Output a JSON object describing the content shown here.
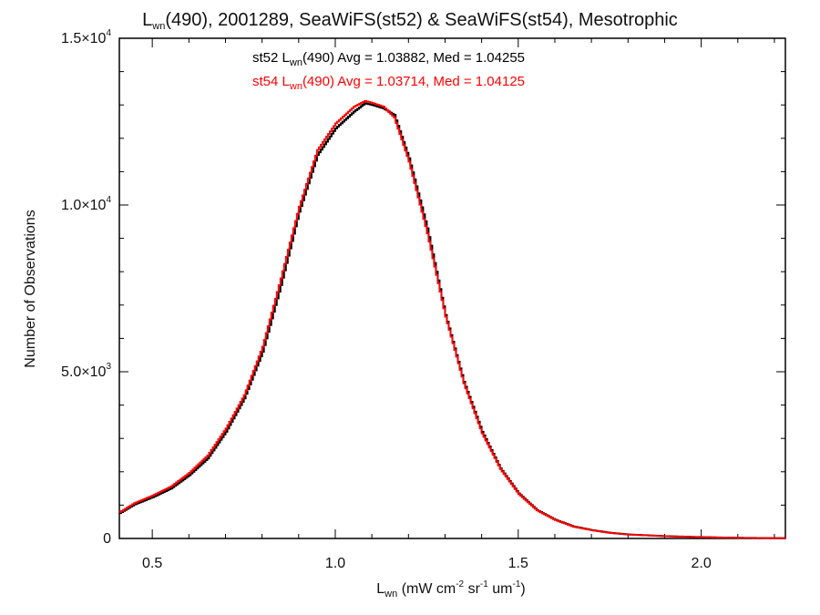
{
  "chart_data": {
    "type": "line",
    "title": {
      "prefix": "L",
      "subscript": "wn",
      "suffix": "(490), 2001289, SeaWiFS(st52) & SeaWiFS(st54), Mesotrophic"
    },
    "xlabel": {
      "prefix": "L",
      "subscript": "wn",
      "units": [
        {
          "text": "(mW cm",
          "sup": "-2"
        },
        {
          "text": "sr",
          "sup": "-1"
        },
        {
          "text": "um",
          "sup": "-1"
        },
        {
          "text": ")",
          "sup": ""
        }
      ]
    },
    "ylabel": "Number of Observations",
    "xlim": [
      0.41,
      2.23
    ],
    "ylim": [
      0,
      15000
    ],
    "x_ticks": [
      {
        "value": 0.5,
        "label": "0.5"
      },
      {
        "value": 1.0,
        "label": "1.0"
      },
      {
        "value": 1.5,
        "label": "1.5"
      },
      {
        "value": 2.0,
        "label": "2.0"
      }
    ],
    "y_ticks": [
      {
        "value": 0,
        "mantissa": "0",
        "exponent": ""
      },
      {
        "value": 5000,
        "mantissa": "5.0×10",
        "exponent": "3"
      },
      {
        "value": 10000,
        "mantissa": "1.0×10",
        "exponent": "4"
      },
      {
        "value": 15000,
        "mantissa": "1.5×10",
        "exponent": "4"
      }
    ],
    "legend": {
      "placement": "top-center",
      "entries": [
        {
          "series_index": 0,
          "prefix": "st52 L",
          "subscript": "wn",
          "suffix": "(490) Avg = 1.03882, Med = 1.04255"
        },
        {
          "series_index": 1,
          "prefix": "st54 L",
          "subscript": "wn",
          "suffix": "(490) Avg = 1.03714, Med = 1.04125"
        }
      ]
    },
    "series": [
      {
        "name": "st52",
        "color": "#000000",
        "points": [
          [
            0.41,
            760
          ],
          [
            0.45,
            1020
          ],
          [
            0.5,
            1240
          ],
          [
            0.55,
            1500
          ],
          [
            0.6,
            1900
          ],
          [
            0.65,
            2400
          ],
          [
            0.7,
            3200
          ],
          [
            0.75,
            4200
          ],
          [
            0.8,
            5600
          ],
          [
            0.85,
            7600
          ],
          [
            0.9,
            9800
          ],
          [
            0.95,
            11500
          ],
          [
            1.0,
            12300
          ],
          [
            1.05,
            12800
          ],
          [
            1.08,
            13050
          ],
          [
            1.1,
            13000
          ],
          [
            1.13,
            12900
          ],
          [
            1.16,
            12700
          ],
          [
            1.2,
            11400
          ],
          [
            1.25,
            9300
          ],
          [
            1.3,
            6700
          ],
          [
            1.35,
            4700
          ],
          [
            1.4,
            3200
          ],
          [
            1.45,
            2100
          ],
          [
            1.5,
            1350
          ],
          [
            1.55,
            850
          ],
          [
            1.6,
            560
          ],
          [
            1.65,
            360
          ],
          [
            1.7,
            250
          ],
          [
            1.75,
            170
          ],
          [
            1.8,
            120
          ],
          [
            1.9,
            70
          ],
          [
            2.0,
            40
          ],
          [
            2.1,
            20
          ],
          [
            2.23,
            8
          ]
        ]
      },
      {
        "name": "st54",
        "color": "#ff0000",
        "points": [
          [
            0.41,
            790
          ],
          [
            0.45,
            1060
          ],
          [
            0.5,
            1290
          ],
          [
            0.55,
            1560
          ],
          [
            0.6,
            1970
          ],
          [
            0.65,
            2490
          ],
          [
            0.7,
            3300
          ],
          [
            0.75,
            4300
          ],
          [
            0.8,
            5750
          ],
          [
            0.85,
            7800
          ],
          [
            0.9,
            9950
          ],
          [
            0.95,
            11650
          ],
          [
            1.0,
            12450
          ],
          [
            1.05,
            12950
          ],
          [
            1.08,
            13120
          ],
          [
            1.1,
            13060
          ],
          [
            1.13,
            12950
          ],
          [
            1.16,
            12620
          ],
          [
            1.2,
            11300
          ],
          [
            1.25,
            9150
          ],
          [
            1.3,
            6650
          ],
          [
            1.35,
            4650
          ],
          [
            1.4,
            3150
          ],
          [
            1.45,
            2080
          ],
          [
            1.5,
            1330
          ],
          [
            1.55,
            840
          ],
          [
            1.6,
            550
          ],
          [
            1.65,
            350
          ],
          [
            1.7,
            245
          ],
          [
            1.75,
            165
          ],
          [
            1.8,
            118
          ],
          [
            1.9,
            68
          ],
          [
            2.0,
            38
          ],
          [
            2.1,
            19
          ],
          [
            2.23,
            8
          ]
        ]
      }
    ],
    "grid": false
  }
}
